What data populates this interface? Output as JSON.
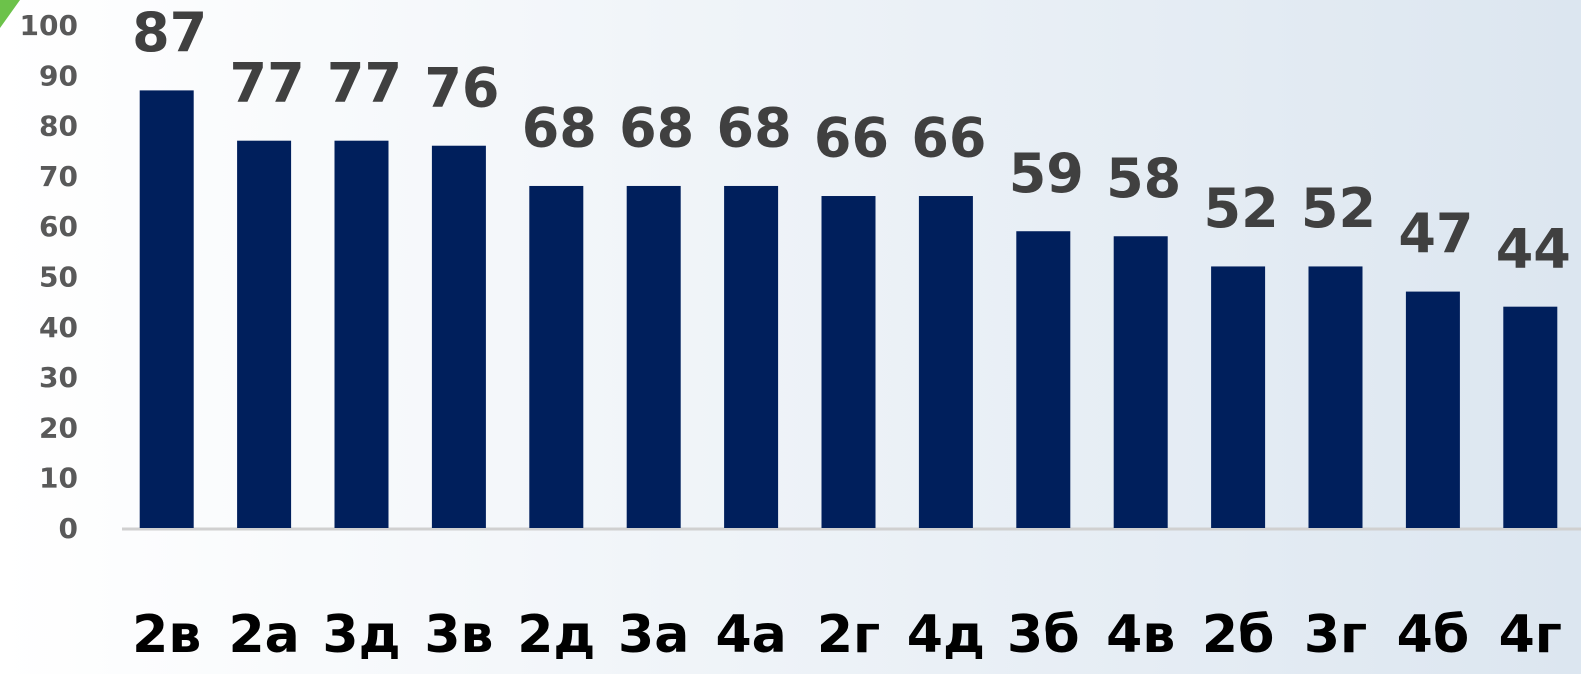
{
  "chart_data": {
    "type": "bar",
    "categories": [
      "2в",
      "2а",
      "3д",
      "3в",
      "2д",
      "3а",
      "4а",
      "2г",
      "4д",
      "3б",
      "4в",
      "2б",
      "3г",
      "4б",
      "4г"
    ],
    "values": [
      87,
      77,
      77,
      76,
      68,
      68,
      68,
      66,
      66,
      59,
      58,
      52,
      52,
      47,
      44
    ],
    "color": "#001f5c",
    "ylim": [
      0,
      100
    ],
    "yticks": [
      0,
      10,
      20,
      30,
      40,
      50,
      60,
      70,
      80,
      90,
      100
    ],
    "grid": false
  }
}
